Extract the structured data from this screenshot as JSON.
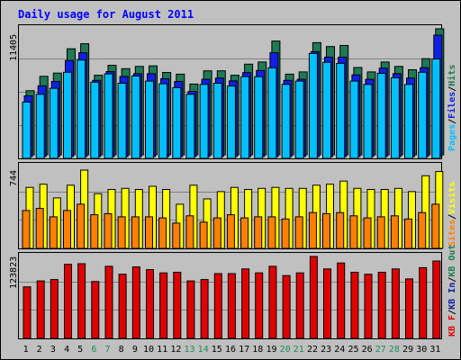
{
  "title": "Daily usage for August 2011",
  "colors": {
    "background": "#c0c0c0",
    "plot_bg": "#c0c0c0",
    "frame": "#000000",
    "title": "#0000ff",
    "hits": "#1e7a53",
    "files": "#1020e8",
    "pages": "#00c0ff",
    "visits": "#ffff00",
    "sites": "#ff8000",
    "kbf": "#e00000",
    "weekend": "#1a8c5a",
    "weekday": "#000000"
  },
  "chart_data": [
    {
      "type": "bar",
      "name": "hits-files-pages",
      "max_label": "11405",
      "ylim": [
        0,
        11405
      ],
      "legend": [
        "Pages",
        "Files",
        "Hits"
      ],
      "categories": [
        "1",
        "2",
        "3",
        "4",
        "5",
        "6",
        "7",
        "8",
        "9",
        "10",
        "11",
        "12",
        "13",
        "14",
        "15",
        "16",
        "17",
        "18",
        "19",
        "20",
        "21",
        "22",
        "23",
        "24",
        "25",
        "26",
        "27",
        "28",
        "29",
        "30",
        "31"
      ],
      "weekend": [
        false,
        false,
        false,
        false,
        false,
        true,
        true,
        false,
        false,
        false,
        false,
        false,
        true,
        true,
        false,
        false,
        false,
        false,
        false,
        true,
        true,
        false,
        false,
        false,
        false,
        false,
        true,
        true,
        false,
        false,
        false
      ],
      "series": [
        {
          "name": "Hits",
          "values": [
            5800,
            7100,
            7400,
            9600,
            10050,
            7200,
            8100,
            7800,
            8000,
            8050,
            7450,
            7300,
            6400,
            7600,
            7600,
            7200,
            8200,
            8400,
            10300,
            7300,
            7500,
            10150,
            9800,
            9900,
            7900,
            7500,
            8400,
            8000,
            7700,
            8700,
            11405
          ]
        },
        {
          "name": "Files",
          "values": [
            5500,
            6400,
            6800,
            8700,
            9400,
            6900,
            7700,
            7250,
            7500,
            7500,
            7050,
            6800,
            5900,
            7000,
            7100,
            6850,
            7600,
            7800,
            9400,
            6900,
            7000,
            9500,
            9000,
            9000,
            7400,
            7000,
            8000,
            7500,
            7100,
            8050,
            11000
          ]
        },
        {
          "name": "Pages",
          "values": [
            5100,
            5800,
            6350,
            7800,
            8900,
            6900,
            7650,
            6800,
            7450,
            7000,
            6750,
            6400,
            5800,
            6700,
            6800,
            6550,
            7400,
            7400,
            8200,
            6700,
            7000,
            9500,
            8700,
            8600,
            7000,
            6700,
            7700,
            7300,
            6700,
            7800,
            9000
          ]
        }
      ]
    },
    {
      "type": "bar",
      "name": "visits-sites",
      "max_label": "744",
      "ylim": [
        0,
        744
      ],
      "legend": [
        "Sites",
        "Visits"
      ],
      "categories": [
        "1",
        "2",
        "3",
        "4",
        "5",
        "6",
        "7",
        "8",
        "9",
        "10",
        "11",
        "12",
        "13",
        "14",
        "15",
        "16",
        "17",
        "18",
        "19",
        "20",
        "21",
        "22",
        "23",
        "24",
        "25",
        "26",
        "27",
        "28",
        "29",
        "30",
        "31"
      ],
      "series": [
        {
          "name": "Visits",
          "values": [
            580,
            610,
            480,
            600,
            744,
            520,
            560,
            570,
            560,
            590,
            560,
            420,
            600,
            470,
            540,
            580,
            560,
            570,
            580,
            570,
            570,
            600,
            610,
            640,
            570,
            560,
            560,
            570,
            540,
            690,
            730
          ]
        },
        {
          "name": "Sites",
          "values": [
            360,
            380,
            300,
            360,
            420,
            320,
            330,
            300,
            300,
            300,
            290,
            240,
            310,
            250,
            290,
            320,
            290,
            300,
            300,
            280,
            300,
            340,
            330,
            340,
            310,
            290,
            300,
            310,
            280,
            340,
            420
          ]
        }
      ]
    },
    {
      "type": "bar",
      "name": "kb",
      "max_label": "123823",
      "ylim": [
        0,
        123823
      ],
      "legend": [
        "KB F",
        "KB In",
        "KB Out"
      ],
      "categories": [
        "1",
        "2",
        "3",
        "4",
        "5",
        "6",
        "7",
        "8",
        "9",
        "10",
        "11",
        "12",
        "13",
        "14",
        "15",
        "16",
        "17",
        "18",
        "19",
        "20",
        "21",
        "22",
        "23",
        "24",
        "25",
        "26",
        "27",
        "28",
        "29",
        "30",
        "31"
      ],
      "series": [
        {
          "name": "KB F",
          "values": [
            78000,
            87000,
            89000,
            112000,
            113000,
            86000,
            109000,
            97000,
            108000,
            104000,
            99000,
            100000,
            87000,
            89000,
            98000,
            98000,
            105000,
            99000,
            109000,
            95000,
            99000,
            123823,
            105000,
            114000,
            100000,
            97000,
            100000,
            105000,
            90000,
            107000,
            117000
          ]
        }
      ]
    }
  ]
}
